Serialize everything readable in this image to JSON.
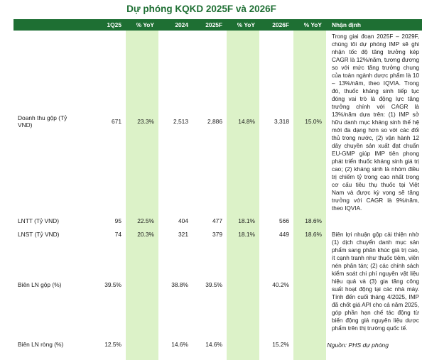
{
  "title": "Dự phóng KQKD 2025F và 2026F",
  "headers": {
    "label": "",
    "q": "1Q25",
    "yoy1": "% YoY",
    "y2024": "2024",
    "y2025": "2025F",
    "yoy2": "% YoY",
    "y2026": "2026F",
    "yoy3": "% YoY",
    "note": "Nhận định"
  },
  "rows": [
    {
      "label": "Doanh thu gộp (Tỷ VND)",
      "q": "671",
      "yoy1": "23.3%",
      "y2024": "2,513",
      "y2025": "2,886",
      "yoy2": "14.8%",
      "y2026": "3,318",
      "yoy3": "15.0%"
    },
    {
      "label": "LNTT (Tỷ VND)",
      "q": "95",
      "yoy1": "22.5%",
      "y2024": "404",
      "y2025": "477",
      "yoy2": "18.1%",
      "y2026": "566",
      "yoy3": "18.6%"
    },
    {
      "label": "LNST (Tỷ VND)",
      "q": "74",
      "yoy1": "20.3%",
      "y2024": "321",
      "y2025": "379",
      "yoy2": "18.1%",
      "y2026": "449",
      "yoy3": "18.6%"
    },
    {
      "label": "Biên LN gộp (%)",
      "q": "39.5%",
      "yoy1": "",
      "y2024": "38.8%",
      "y2025": "39.5%",
      "yoy2": "",
      "y2026": "40.2%",
      "yoy3": ""
    },
    {
      "label": "Biên LN ròng (%)",
      "q": "12.5%",
      "yoy1": "",
      "y2024": "14.6%",
      "y2025": "14.6%",
      "yoy2": "",
      "y2026": "15.2%",
      "yoy3": ""
    }
  ],
  "notes": {
    "revenue": "Trong giai đoạn 2025F – 2029F, chúng tôi dự phóng IMP sẽ ghi nhận tốc độ tăng trưởng kép CAGR là 12%/năm, tương đương so với mức tăng trưởng chung của toàn ngành dược phẩm là 10 – 13%/năm, theo IQVIA. Trong đó, thuốc kháng sinh tiếp tục đóng vai trò là động lực tăng trưởng chính với CAGR là 13%/năm dựa trên: (1) IMP sở hữu danh mục kháng sinh thế hệ mới đa dạng hơn so với các đối thủ trong nước, (2) vận hành 12 dây chuyền sản xuất đạt chuẩn EU-GMP giúp IMP tiên phong phát triển thuốc kháng sinh giá trị cao; (2) kháng sinh là nhóm điều trị chiếm tỷ trong cao nhất trong cơ cấu tiêu thụ thuốc tại Việt Nam và được kỳ vọng sẽ tăng trưởng với CAGR là 9%/năm, theo IQVIA.",
    "margin": "Biên lợi nhuận gộp cải thiện nhờ (1) dịch chuyển danh mục sản phẩm sang phân khúc giá trị cao, ít cạnh tranh như thuốc tiêm, viên nén phân tán; (2) các chính sách kiểm soát chi phí nguyên vật liệu hiệu quả và (3) gia tăng công suất hoạt động tại các nhà máy. Tính đến cuối tháng 4/2025, IMP đã chốt giá API cho cả năm 2025, góp phần hạn chế tác động từ biến động giá nguyên liệu dược phẩm trên thị trường quốc tế."
  },
  "source": "Nguồn: PHS dự phóng",
  "colors": {
    "header_bg": "#1e6f33",
    "yoy_bg": "#dcf2c8",
    "title": "#1e6f33"
  }
}
